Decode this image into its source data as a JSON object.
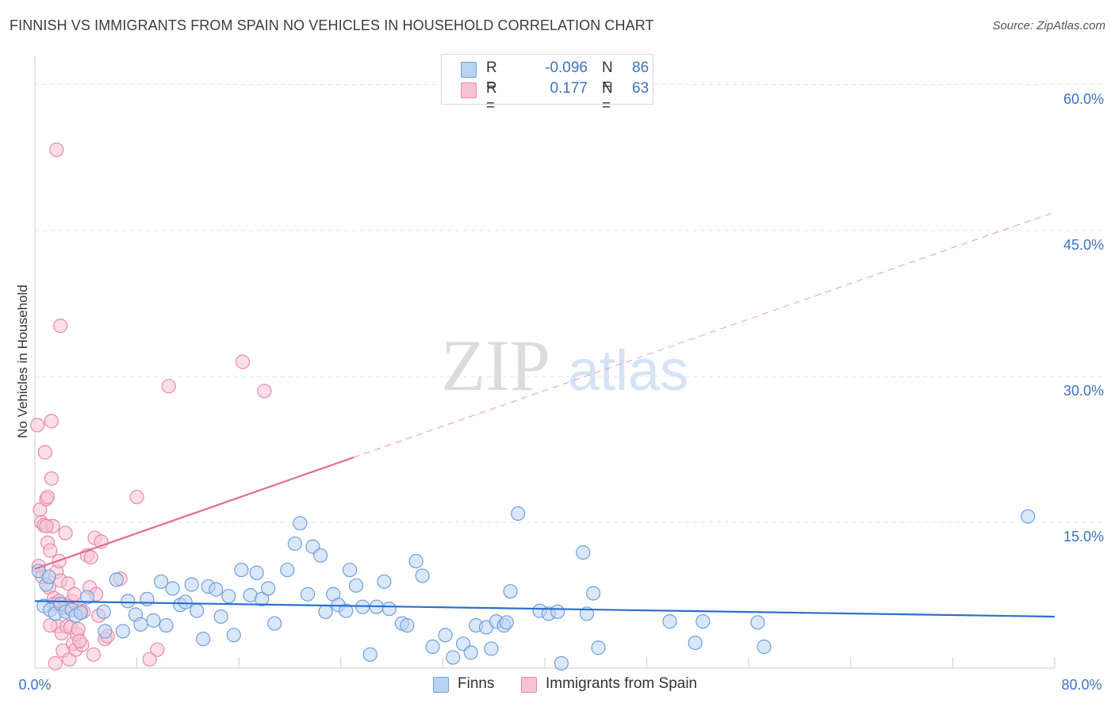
{
  "title": "FINNISH VS IMMIGRANTS FROM SPAIN NO VEHICLES IN HOUSEHOLD CORRELATION CHART",
  "source": "Source: ZipAtlas.com",
  "watermark": {
    "zip": "ZIP",
    "atlas": "atlas"
  },
  "legend": {
    "r_label": "R =",
    "n_label": "N =",
    "finns": {
      "r": "-0.096",
      "n": "86"
    },
    "spain": {
      "r": "0.177",
      "n": "63"
    }
  },
  "colors": {
    "finns_fill": "#b9d3f3",
    "finns_stroke": "#6f9fdc",
    "finns_line": "#2a6fcf",
    "spain_fill": "#f7c3d3",
    "spain_stroke": "#e88aaa",
    "spain_line": "#e56c94",
    "tick_label": "#3b73c8",
    "grid": "#e3e3e3"
  },
  "chart_data": {
    "type": "scatter",
    "title": "FINNISH VS IMMIGRANTS FROM SPAIN NO VEHICLES IN HOUSEHOLD CORRELATION CHART",
    "xlabel": "",
    "ylabel": "No Vehicles in Household",
    "xlim": [
      0,
      80
    ],
    "ylim": [
      0,
      63
    ],
    "x_tick_labels": [
      "0.0%",
      "80.0%"
    ],
    "y_ticks": [
      15,
      30,
      45,
      60
    ],
    "y_tick_labels": [
      "15.0%",
      "30.0%",
      "45.0%",
      "60.0%"
    ],
    "legend_position": "top-center",
    "series": [
      {
        "name": "Finns",
        "r": -0.096,
        "n": 86,
        "trend": {
          "x0": 0,
          "y0": 6.9,
          "x1": 80,
          "y1": 5.3
        },
        "points": [
          [
            0.3,
            10.0
          ],
          [
            0.7,
            6.4
          ],
          [
            0.9,
            8.6
          ],
          [
            1.1,
            9.4
          ],
          [
            1.2,
            6.0
          ],
          [
            1.6,
            5.6
          ],
          [
            2.0,
            6.6
          ],
          [
            2.4,
            5.8
          ],
          [
            2.9,
            6.0
          ],
          [
            3.2,
            5.4
          ],
          [
            3.6,
            5.7
          ],
          [
            4.1,
            7.3
          ],
          [
            5.4,
            5.8
          ],
          [
            5.5,
            3.8
          ],
          [
            6.4,
            9.1
          ],
          [
            6.9,
            3.8
          ],
          [
            7.3,
            6.9
          ],
          [
            7.9,
            5.5
          ],
          [
            8.3,
            4.5
          ],
          [
            8.8,
            7.1
          ],
          [
            9.3,
            4.9
          ],
          [
            9.9,
            8.9
          ],
          [
            10.3,
            4.4
          ],
          [
            10.8,
            8.2
          ],
          [
            11.4,
            6.5
          ],
          [
            11.8,
            6.8
          ],
          [
            12.3,
            8.6
          ],
          [
            12.7,
            5.9
          ],
          [
            13.2,
            3.0
          ],
          [
            13.6,
            8.4
          ],
          [
            14.2,
            8.1
          ],
          [
            14.6,
            5.3
          ],
          [
            15.2,
            7.4
          ],
          [
            15.6,
            3.4
          ],
          [
            16.2,
            10.1
          ],
          [
            16.9,
            7.5
          ],
          [
            17.4,
            9.8
          ],
          [
            17.8,
            7.1
          ],
          [
            18.3,
            8.2
          ],
          [
            18.8,
            4.6
          ],
          [
            19.8,
            10.1
          ],
          [
            20.4,
            12.8
          ],
          [
            20.8,
            14.9
          ],
          [
            21.4,
            7.6
          ],
          [
            21.8,
            12.5
          ],
          [
            22.4,
            11.6
          ],
          [
            22.8,
            5.8
          ],
          [
            23.4,
            7.6
          ],
          [
            23.8,
            6.5
          ],
          [
            24.4,
            5.9
          ],
          [
            24.7,
            10.1
          ],
          [
            25.2,
            8.5
          ],
          [
            25.7,
            6.3
          ],
          [
            26.3,
            1.4
          ],
          [
            26.8,
            6.3
          ],
          [
            27.4,
            8.9
          ],
          [
            27.8,
            6.1
          ],
          [
            28.8,
            4.6
          ],
          [
            29.2,
            4.4
          ],
          [
            29.9,
            11.0
          ],
          [
            30.4,
            9.5
          ],
          [
            31.2,
            2.2
          ],
          [
            32.2,
            3.4
          ],
          [
            32.8,
            1.1
          ],
          [
            33.6,
            2.5
          ],
          [
            34.2,
            1.6
          ],
          [
            34.6,
            4.4
          ],
          [
            35.4,
            4.2
          ],
          [
            35.8,
            2.0
          ],
          [
            36.2,
            4.8
          ],
          [
            36.8,
            4.4
          ],
          [
            37.3,
            7.9
          ],
          [
            39.6,
            5.9
          ],
          [
            40.3,
            5.6
          ],
          [
            41.3,
            0.5
          ],
          [
            43.0,
            11.9
          ],
          [
            43.3,
            5.6
          ],
          [
            43.8,
            7.7
          ],
          [
            44.2,
            2.1
          ],
          [
            41.0,
            5.8
          ],
          [
            37.9,
            15.9
          ],
          [
            37.0,
            4.7
          ],
          [
            49.8,
            4.8
          ],
          [
            51.8,
            2.6
          ],
          [
            52.4,
            4.8
          ],
          [
            56.7,
            4.7
          ],
          [
            57.2,
            2.2
          ],
          [
            77.9,
            15.6
          ]
        ]
      },
      {
        "name": "Immigrants from Spain",
        "r": 0.177,
        "n": 63,
        "trend": {
          "x0": 0,
          "y0": 10.2,
          "x1": 80,
          "y1": 46.9,
          "solid_until_x": 25
        },
        "points": [
          [
            0.2,
            25.0
          ],
          [
            0.3,
            10.5
          ],
          [
            0.4,
            16.3
          ],
          [
            0.5,
            15.0
          ],
          [
            0.6,
            9.4
          ],
          [
            0.7,
            14.7
          ],
          [
            0.8,
            22.2
          ],
          [
            0.9,
            17.4
          ],
          [
            1.0,
            17.6
          ],
          [
            1.0,
            12.9
          ],
          [
            1.1,
            8.3
          ],
          [
            1.2,
            12.1
          ],
          [
            1.3,
            19.5
          ],
          [
            1.3,
            25.4
          ],
          [
            1.4,
            14.6
          ],
          [
            1.5,
            7.2
          ],
          [
            1.5,
            6.6
          ],
          [
            1.6,
            0.5
          ],
          [
            1.7,
            53.3
          ],
          [
            1.7,
            9.9
          ],
          [
            1.8,
            4.3
          ],
          [
            1.9,
            6.9
          ],
          [
            1.9,
            11.0
          ],
          [
            2.0,
            9.0
          ],
          [
            2.0,
            35.2
          ],
          [
            2.1,
            3.6
          ],
          [
            2.2,
            1.8
          ],
          [
            2.3,
            6.2
          ],
          [
            2.4,
            13.9
          ],
          [
            2.5,
            4.3
          ],
          [
            2.6,
            8.7
          ],
          [
            2.7,
            0.9
          ],
          [
            2.8,
            4.2
          ],
          [
            2.9,
            6.9
          ],
          [
            3.0,
            2.5
          ],
          [
            3.1,
            7.6
          ],
          [
            3.2,
            1.9
          ],
          [
            3.3,
            3.5
          ],
          [
            3.4,
            4.0
          ],
          [
            3.6,
            5.9
          ],
          [
            3.7,
            2.4
          ],
          [
            3.8,
            5.8
          ],
          [
            4.1,
            11.6
          ],
          [
            4.3,
            8.3
          ],
          [
            4.4,
            11.4
          ],
          [
            4.6,
            1.4
          ],
          [
            4.7,
            13.4
          ],
          [
            4.8,
            7.6
          ],
          [
            5.0,
            5.4
          ],
          [
            5.2,
            13.0
          ],
          [
            5.5,
            3.0
          ],
          [
            5.7,
            3.3
          ],
          [
            6.7,
            9.2
          ],
          [
            8.0,
            17.6
          ],
          [
            9.6,
            1.9
          ],
          [
            10.5,
            29.0
          ],
          [
            16.3,
            31.5
          ],
          [
            18.0,
            28.5
          ],
          [
            9.0,
            0.9
          ],
          [
            2.5,
            6.4
          ],
          [
            1.2,
            4.4
          ],
          [
            0.9,
            14.6
          ],
          [
            3.5,
            2.8
          ]
        ]
      }
    ]
  }
}
